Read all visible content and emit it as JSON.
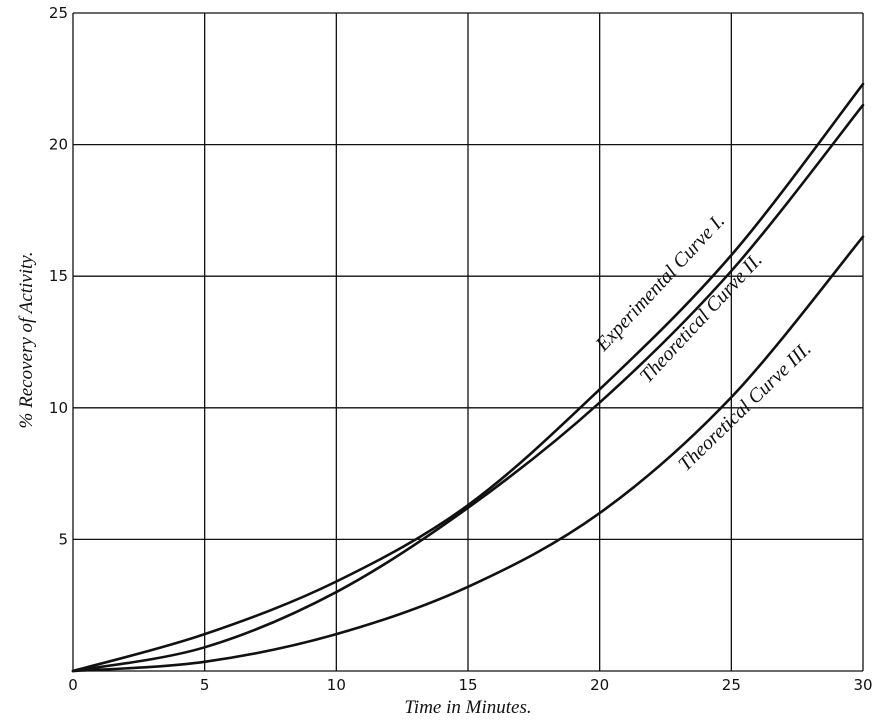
{
  "chart_data": {
    "type": "line",
    "title": "",
    "xlabel": "Time in Minutes.",
    "ylabel": "% Recovery of Activity.",
    "xlim": [
      0,
      30
    ],
    "ylim": [
      0,
      25
    ],
    "x_ticks": [
      "0",
      "5",
      "10",
      "15",
      "20",
      "25",
      "30"
    ],
    "y_ticks": [
      "5",
      "10",
      "15",
      "20",
      "25"
    ],
    "grid": true,
    "legend": "inline labels along curves",
    "x": [
      0,
      5,
      10,
      15,
      20,
      25,
      30
    ],
    "series": [
      {
        "name": "Experimental Curve I.",
        "values": [
          0,
          1.4,
          3.4,
          6.3,
          10.7,
          15.8,
          22.3
        ]
      },
      {
        "name": "Theoretical Curve II.",
        "values": [
          0,
          0.9,
          3.0,
          6.2,
          10.2,
          15.2,
          21.5
        ]
      },
      {
        "name": "Theoretical Curve III.",
        "values": [
          0,
          0.35,
          1.4,
          3.2,
          6.0,
          10.4,
          16.5
        ]
      }
    ]
  }
}
